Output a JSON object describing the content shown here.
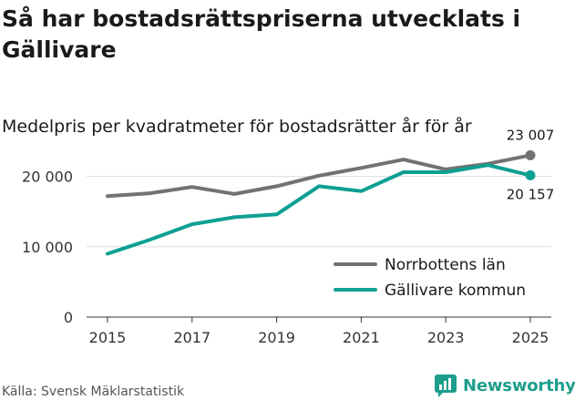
{
  "title": "Så har bostadsrättspriserna utvecklats i Gällivare",
  "subtitle": "Medelpris per kvadratmeter för bostadsrätter år för år",
  "source": "Källa: Svensk Mäklarstatistik",
  "brand": {
    "name": "Newsworthy",
    "icon": "newsworthy-logo-icon",
    "color": "#1d9e8c"
  },
  "chart_data": {
    "type": "line",
    "x": [
      2015,
      2016,
      2017,
      2018,
      2019,
      2020,
      2021,
      2022,
      2023,
      2024,
      2025
    ],
    "x_ticks": [
      "2015",
      "2017",
      "2019",
      "2021",
      "2023",
      "2025"
    ],
    "y_ticks": [
      {
        "value": 0,
        "label": "0"
      },
      {
        "value": 10000,
        "label": "10 000"
      },
      {
        "value": 20000,
        "label": "20 000"
      }
    ],
    "ylim": [
      0,
      25000
    ],
    "grid": true,
    "legend_position": "bottom-right",
    "series": [
      {
        "name": "Norrbottens län",
        "color": "#727272",
        "values": [
          17200,
          17600,
          18500,
          17500,
          18600,
          20100,
          21200,
          22400,
          21000,
          21800,
          23007
        ],
        "end_label": "23 007"
      },
      {
        "name": "Gällivare kommun",
        "color": "#0e9f93",
        "values": [
          9000,
          11000,
          13200,
          14200,
          14600,
          18600,
          17900,
          20600,
          20600,
          21600,
          20157
        ],
        "end_label": "20 157"
      }
    ]
  }
}
